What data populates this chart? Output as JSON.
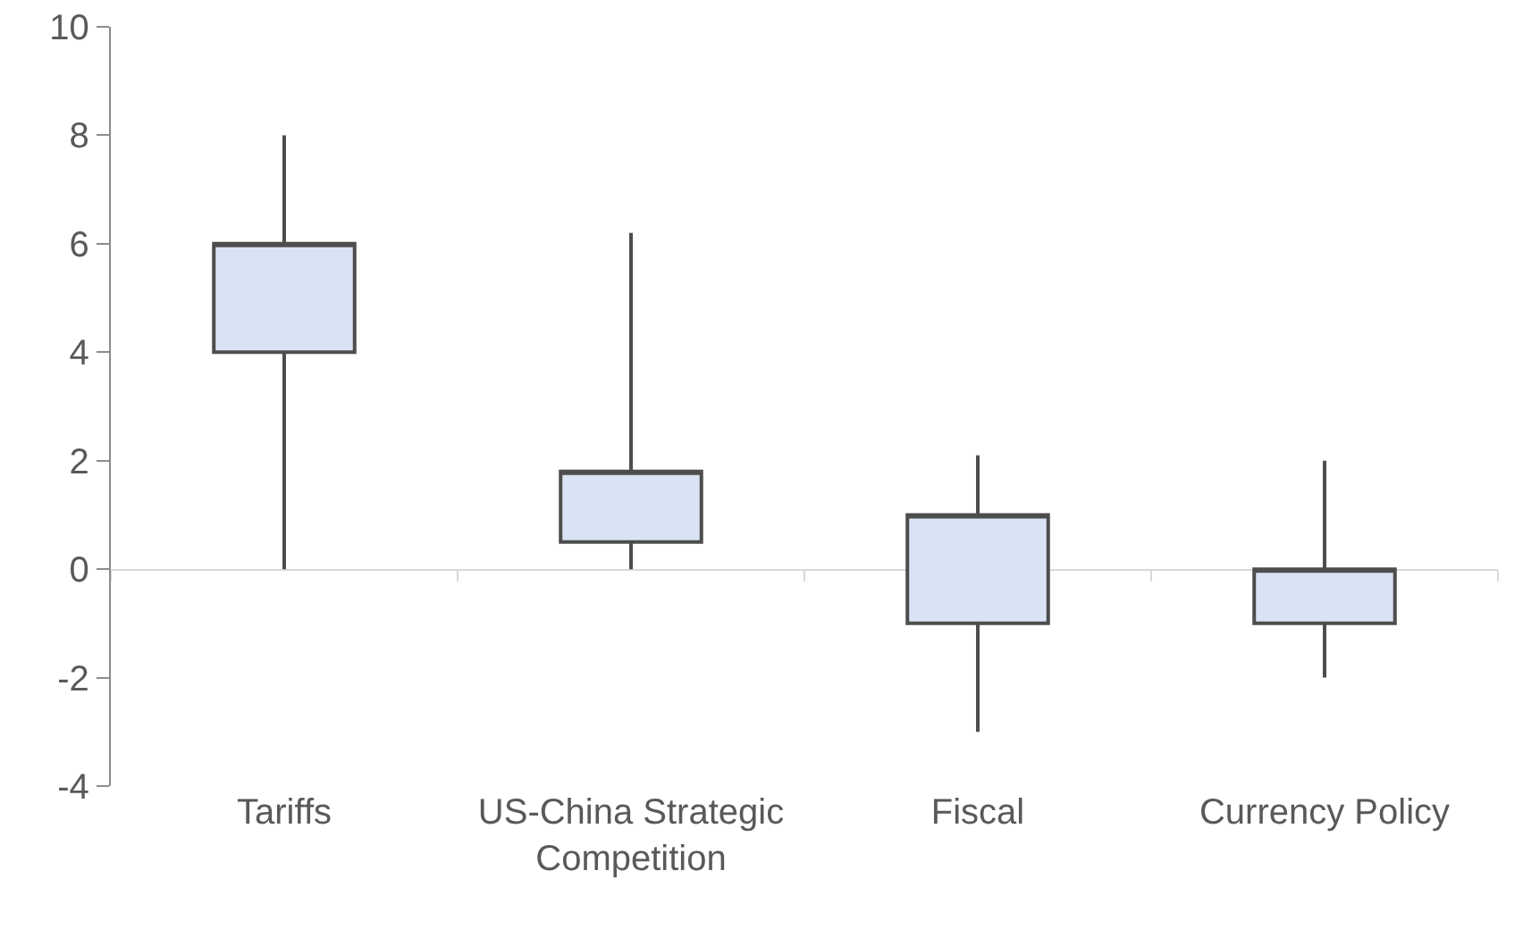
{
  "chart_data": {
    "type": "candlestick",
    "categories": [
      "Tariffs",
      "US-China Strategic Competition",
      "Fiscal",
      "Currency Policy"
    ],
    "ohlc": [
      [
        4,
        8,
        0,
        6
      ],
      [
        0.5,
        6.2,
        0,
        1.8
      ],
      [
        -1,
        2.1,
        -3,
        1
      ],
      [
        -1,
        2,
        -2,
        0
      ]
    ],
    "color": "#dae3f3",
    "ylim": [
      -4,
      10
    ],
    "yticks": [
      -4,
      -2,
      0,
      2,
      4,
      6,
      8,
      10
    ]
  }
}
